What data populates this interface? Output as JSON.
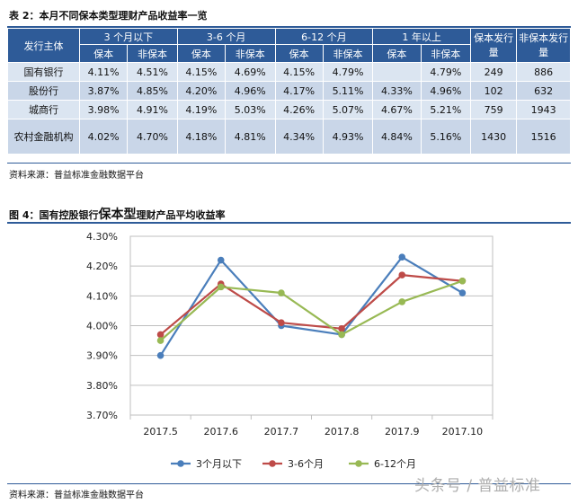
{
  "table_caption": "表 2：本月不同保本类型理财产品收益率一览",
  "table": {
    "header_group": [
      "发行主体",
      "3 个月以下",
      "3-6 个月",
      "6-12 个月",
      "1 年以上",
      "保本发行量",
      "非保本发行量"
    ],
    "header_sub": [
      "保本",
      "非保本",
      "保本",
      "非保本",
      "保本",
      "非保本",
      "保本",
      "非保本"
    ],
    "rows": [
      [
        "国有银行",
        "4.11%",
        "4.51%",
        "4.15%",
        "4.69%",
        "4.15%",
        "4.79%",
        "",
        "4.79%",
        "249",
        "886"
      ],
      [
        "股份行",
        "3.87%",
        "4.85%",
        "4.20%",
        "4.96%",
        "4.17%",
        "5.11%",
        "4.33%",
        "4.96%",
        "102",
        "632"
      ],
      [
        "城商行",
        "3.98%",
        "4.91%",
        "4.19%",
        "5.03%",
        "4.26%",
        "5.07%",
        "4.67%",
        "5.21%",
        "759",
        "1943"
      ],
      [
        "农村金融机构",
        "4.02%",
        "4.70%",
        "4.18%",
        "4.81%",
        "4.34%",
        "4.93%",
        "4.84%",
        "5.16%",
        "1430",
        "1516"
      ]
    ]
  },
  "table_source": "资料来源：普益标准金融数据平台",
  "chart_caption_a": "图 4：国有控股银行",
  "chart_caption_b": "保本型",
  "chart_caption_c": "理财产品平均收益率",
  "chart_source": "资料来源：普益标准金融数据平台",
  "watermark": "头条号 / 普益标准",
  "chart_data": {
    "type": "line",
    "title": "",
    "xlabel": "",
    "ylabel": "",
    "categories": [
      "2017.5",
      "2017.6",
      "2017.7",
      "2017.8",
      "2017.9",
      "2017.10"
    ],
    "ylim": [
      3.7,
      4.3
    ],
    "yticks": [
      3.7,
      3.8,
      3.9,
      4.0,
      4.1,
      4.2,
      4.3
    ],
    "ytick_labels": [
      "3.70%",
      "3.80%",
      "3.90%",
      "4.00%",
      "4.10%",
      "4.20%",
      "4.30%"
    ],
    "grid": "y",
    "legend_position": "bottom",
    "series": [
      {
        "name": "3个月以下",
        "color": "#4a7ebb",
        "values": [
          3.9,
          4.22,
          4.0,
          3.97,
          4.23,
          4.11
        ]
      },
      {
        "name": "3-6个月",
        "color": "#be4b48",
        "values": [
          3.97,
          4.14,
          4.01,
          3.99,
          4.17,
          4.15
        ]
      },
      {
        "name": "6-12个月",
        "color": "#98b954",
        "values": [
          3.95,
          4.13,
          4.11,
          3.97,
          4.08,
          4.15
        ]
      }
    ]
  }
}
